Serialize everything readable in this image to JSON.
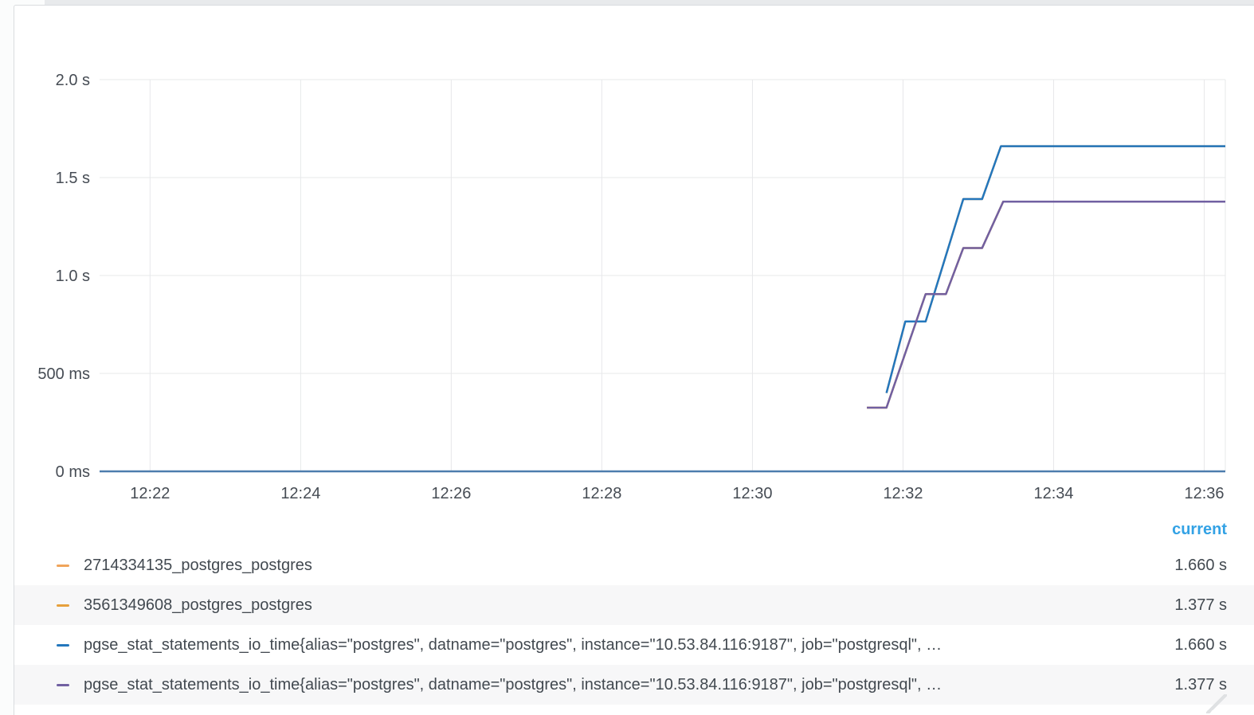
{
  "panel": {
    "legend": {
      "header": "current"
    }
  },
  "chart_data": {
    "type": "line",
    "title": "",
    "unit": "duration_seconds",
    "grid": true,
    "legend_position": "bottom",
    "x_axis": {
      "range_minutes_after_1200": [
        741.33,
        756.28
      ],
      "ticks": [
        {
          "minute": 742,
          "label": "12:22"
        },
        {
          "minute": 744,
          "label": "12:24"
        },
        {
          "minute": 746,
          "label": "12:26"
        },
        {
          "minute": 748,
          "label": "12:28"
        },
        {
          "minute": 750,
          "label": "12:30"
        },
        {
          "minute": 752,
          "label": "12:32"
        },
        {
          "minute": 754,
          "label": "12:34"
        },
        {
          "minute": 756,
          "label": "12:36"
        }
      ]
    },
    "y_axis": {
      "ylim": [
        0,
        2.0
      ],
      "ticks": [
        {
          "value": 2.0,
          "label": "2.0 s"
        },
        {
          "value": 1.5,
          "label": "1.5 s"
        },
        {
          "value": 1.0,
          "label": "1.0 s"
        },
        {
          "value": 0.5,
          "label": "500 ms"
        },
        {
          "value": 0,
          "label": "0 ms"
        }
      ]
    },
    "baseline": {
      "value": 0,
      "color": "#4d7dad"
    },
    "series": [
      {
        "name": "2714334135_postgres_postgres",
        "color": "#f0a45a",
        "current": "1.660 s",
        "current_seconds": 1.66,
        "points": [
          [
            751.78,
            0.4
          ],
          [
            752.03,
            0.765
          ],
          [
            752.3,
            0.765
          ],
          [
            752.8,
            1.39
          ],
          [
            753.05,
            1.39
          ],
          [
            753.3,
            1.66
          ],
          [
            756.28,
            1.66
          ]
        ]
      },
      {
        "name": "3561349608_postgres_postgres",
        "color": "#e6a03c",
        "current": "1.377 s",
        "current_seconds": 1.377,
        "points": [
          [
            751.52,
            0.325
          ],
          [
            751.78,
            0.325
          ],
          [
            752.3,
            0.905
          ],
          [
            752.57,
            0.905
          ],
          [
            752.8,
            1.14
          ],
          [
            753.05,
            1.14
          ],
          [
            753.33,
            1.377
          ],
          [
            756.28,
            1.377
          ]
        ]
      },
      {
        "name": "pgse_stat_statements_io_time{alias=\"postgres\", datname=\"postgres\", instance=\"10.53.84.116:9187\", job=\"postgresql\", …",
        "color": "#2377bd",
        "current": "1.660 s",
        "current_seconds": 1.66,
        "points": [
          [
            751.78,
            0.4
          ],
          [
            752.03,
            0.765
          ],
          [
            752.3,
            0.765
          ],
          [
            752.8,
            1.39
          ],
          [
            753.05,
            1.39
          ],
          [
            753.3,
            1.66
          ],
          [
            756.28,
            1.66
          ]
        ]
      },
      {
        "name": "pgse_stat_statements_io_time{alias=\"postgres\", datname=\"postgres\", instance=\"10.53.84.116:9187\", job=\"postgresql\", …",
        "color": "#7160a2",
        "current": "1.377 s",
        "current_seconds": 1.377,
        "points": [
          [
            751.52,
            0.325
          ],
          [
            751.78,
            0.325
          ],
          [
            752.3,
            0.905
          ],
          [
            752.57,
            0.905
          ],
          [
            752.8,
            1.14
          ],
          [
            753.05,
            1.14
          ],
          [
            753.33,
            1.377
          ],
          [
            756.28,
            1.377
          ]
        ]
      }
    ],
    "style": {
      "grid_color": "#e7e8ea",
      "axis_text_color": "#464c54",
      "line_width": 2.5
    }
  }
}
